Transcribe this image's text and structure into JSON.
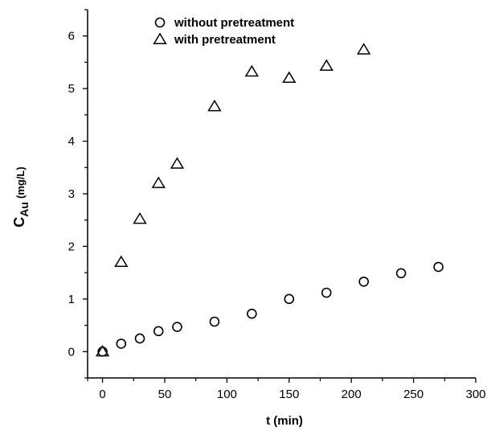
{
  "chart_data": {
    "type": "scatter",
    "xlabel": "t (min)",
    "ylabel_main": "C",
    "ylabel_sub": "Au",
    "ylabel_unit": "(mg/L)",
    "xlim": [
      -12,
      300
    ],
    "ylim": [
      -0.5,
      6.5
    ],
    "x_ticks": [
      0,
      50,
      100,
      150,
      200,
      250,
      300
    ],
    "y_ticks": [
      0,
      1,
      2,
      3,
      4,
      5,
      6
    ],
    "grid": false,
    "legend_position": "top-left",
    "series": [
      {
        "name": "without pretreatment",
        "marker": "circle",
        "points": [
          [
            0,
            0.0
          ],
          [
            15,
            0.15
          ],
          [
            30,
            0.25
          ],
          [
            45,
            0.39
          ],
          [
            60,
            0.47
          ],
          [
            90,
            0.57
          ],
          [
            120,
            0.72
          ],
          [
            150,
            1.0
          ],
          [
            180,
            1.12
          ],
          [
            210,
            1.33
          ],
          [
            240,
            1.49
          ],
          [
            270,
            1.61
          ]
        ]
      },
      {
        "name": "with pretreatment",
        "marker": "triangle",
        "points": [
          [
            0,
            0.0
          ],
          [
            15,
            1.7
          ],
          [
            30,
            2.52
          ],
          [
            45,
            3.2
          ],
          [
            60,
            3.57
          ],
          [
            90,
            4.66
          ],
          [
            120,
            5.32
          ],
          [
            150,
            5.2
          ],
          [
            180,
            5.43
          ],
          [
            210,
            5.74
          ]
        ]
      }
    ]
  }
}
